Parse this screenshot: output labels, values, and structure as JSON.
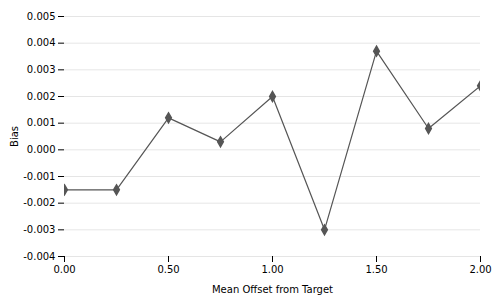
{
  "chart_data": {
    "type": "line",
    "x": [
      0.0,
      0.25,
      0.5,
      0.75,
      1.0,
      1.25,
      1.5,
      1.75,
      2.0
    ],
    "values": [
      -0.0015,
      -0.0015,
      0.0012,
      0.0003,
      0.002,
      -0.003,
      0.0037,
      0.0008,
      0.0024
    ],
    "xlabel": "Mean Offset from Target",
    "ylabel": "Bias",
    "xlim": [
      0,
      2
    ],
    "ylim": [
      -0.004,
      0.005
    ],
    "xticks": [
      {
        "value": 0,
        "label": "0.00"
      },
      {
        "value": 0.5,
        "label": "0.50"
      },
      {
        "value": 1,
        "label": "1.00"
      },
      {
        "value": 1.5,
        "label": "1.50"
      },
      {
        "value": 2,
        "label": "2.00"
      }
    ],
    "yticks": [
      -0.004,
      -0.003,
      -0.002,
      -0.001,
      {
        "value": 0,
        "label": "0.000"
      },
      0.001,
      0.002,
      0.003,
      0.004,
      0.005
    ],
    "color": "#555555",
    "marker": "diamond",
    "grid": "y"
  }
}
